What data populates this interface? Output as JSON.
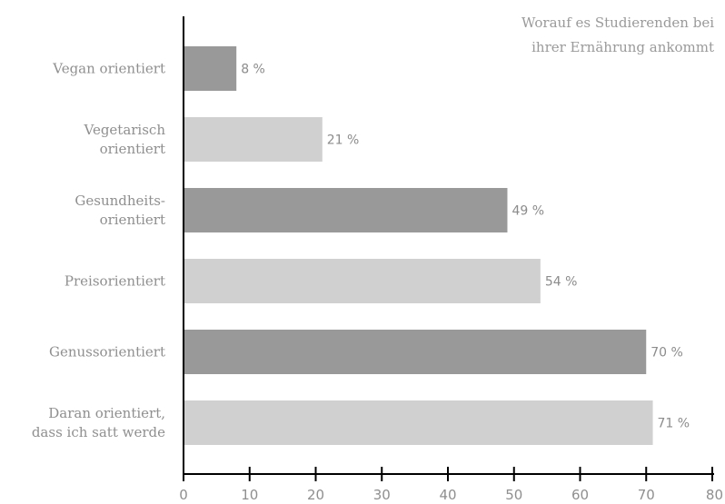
{
  "chart_data": {
    "type": "bar",
    "orientation": "horizontal",
    "title_lines": [
      "Worauf es Studierenden bei",
      "ihrer Ernährung ankommt"
    ],
    "categories": [
      [
        "Vegan orientiert"
      ],
      [
        "Vegetarisch",
        "orientiert"
      ],
      [
        "Gesundheits-",
        "orientiert"
      ],
      [
        "Preisorientiert"
      ],
      [
        "Genussorientiert"
      ],
      [
        "Daran orientiert,",
        "dass ich satt werde"
      ]
    ],
    "values": [
      8,
      21,
      49,
      54,
      70,
      71
    ],
    "value_labels": [
      "8 %",
      "21 %",
      "49 %",
      "54 %",
      "70 %",
      "71 %"
    ],
    "bar_colors": [
      "#999999",
      "#d0d0d0",
      "#999999",
      "#d0d0d0",
      "#999999",
      "#d0d0d0"
    ],
    "xlim": [
      0,
      80
    ],
    "xticks": [
      0,
      10,
      20,
      30,
      40,
      50,
      60,
      70,
      80
    ],
    "xlabel": "",
    "ylabel": "",
    "grid": false,
    "legend": "none"
  }
}
